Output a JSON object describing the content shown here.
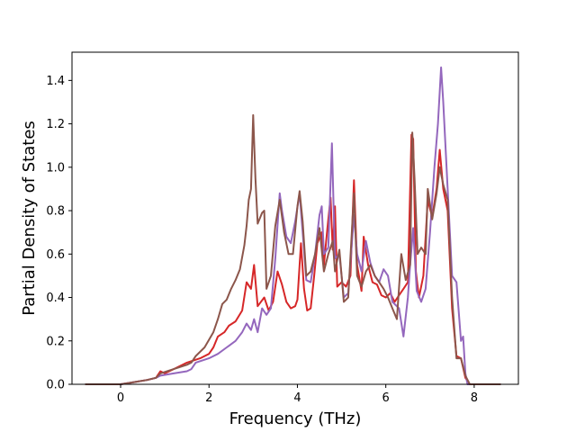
{
  "chart_data": {
    "type": "line",
    "title": "",
    "xlabel": "Frequency (THz)",
    "ylabel": "Partial Density of States",
    "xlim": [
      -1.1,
      9.0
    ],
    "ylim": [
      0.0,
      1.53
    ],
    "xticks": [
      0,
      2,
      4,
      6,
      8
    ],
    "yticks": [
      0.0,
      0.2,
      0.4,
      0.6,
      0.8,
      1.0,
      1.2,
      1.4
    ],
    "xtick_labels": [
      "0",
      "2",
      "4",
      "6",
      "8"
    ],
    "ytick_labels": [
      "0.0",
      "0.2",
      "0.4",
      "0.6",
      "0.8",
      "1.0",
      "1.2",
      "1.4"
    ],
    "grid": false,
    "legend": "none",
    "series": [
      {
        "color": "#d62728",
        "points": [
          [
            -0.8,
            0
          ],
          [
            0,
            0
          ],
          [
            0.3,
            0.01
          ],
          [
            0.6,
            0.02
          ],
          [
            0.8,
            0.03
          ],
          [
            0.9,
            0.06
          ],
          [
            1.0,
            0.05
          ],
          [
            1.2,
            0.07
          ],
          [
            1.5,
            0.1
          ],
          [
            1.8,
            0.12
          ],
          [
            2.0,
            0.14
          ],
          [
            2.1,
            0.17
          ],
          [
            2.2,
            0.22
          ],
          [
            2.35,
            0.24
          ],
          [
            2.45,
            0.27
          ],
          [
            2.6,
            0.29
          ],
          [
            2.75,
            0.34
          ],
          [
            2.85,
            0.47
          ],
          [
            2.95,
            0.44
          ],
          [
            3.02,
            0.55
          ],
          [
            3.1,
            0.36
          ],
          [
            3.25,
            0.4
          ],
          [
            3.35,
            0.34
          ],
          [
            3.45,
            0.38
          ],
          [
            3.55,
            0.52
          ],
          [
            3.65,
            0.46
          ],
          [
            3.75,
            0.38
          ],
          [
            3.85,
            0.35
          ],
          [
            3.95,
            0.36
          ],
          [
            4.0,
            0.39
          ],
          [
            4.08,
            0.65
          ],
          [
            4.15,
            0.44
          ],
          [
            4.22,
            0.34
          ],
          [
            4.3,
            0.35
          ],
          [
            4.38,
            0.5
          ],
          [
            4.45,
            0.65
          ],
          [
            4.55,
            0.7
          ],
          [
            4.6,
            0.55
          ],
          [
            4.68,
            0.72
          ],
          [
            4.75,
            0.86
          ],
          [
            4.8,
            0.62
          ],
          [
            4.85,
            0.82
          ],
          [
            4.9,
            0.45
          ],
          [
            5.0,
            0.47
          ],
          [
            5.1,
            0.45
          ],
          [
            5.2,
            0.5
          ],
          [
            5.28,
            0.94
          ],
          [
            5.35,
            0.55
          ],
          [
            5.45,
            0.43
          ],
          [
            5.5,
            0.68
          ],
          [
            5.6,
            0.55
          ],
          [
            5.7,
            0.47
          ],
          [
            5.8,
            0.46
          ],
          [
            5.9,
            0.41
          ],
          [
            6.0,
            0.4
          ],
          [
            6.1,
            0.42
          ],
          [
            6.2,
            0.38
          ],
          [
            6.3,
            0.41
          ],
          [
            6.4,
            0.44
          ],
          [
            6.5,
            0.47
          ],
          [
            6.58,
            1.15
          ],
          [
            6.62,
            1.13
          ],
          [
            6.68,
            0.52
          ],
          [
            6.75,
            0.4
          ],
          [
            6.85,
            0.5
          ],
          [
            6.95,
            0.85
          ],
          [
            7.05,
            0.77
          ],
          [
            7.15,
            0.9
          ],
          [
            7.22,
            1.08
          ],
          [
            7.3,
            0.9
          ],
          [
            7.4,
            0.8
          ],
          [
            7.5,
            0.35
          ],
          [
            7.6,
            0.13
          ],
          [
            7.7,
            0.12
          ],
          [
            7.8,
            0.03
          ],
          [
            7.9,
            0
          ],
          [
            8.6,
            0
          ]
        ]
      },
      {
        "color": "#9467bd",
        "points": [
          [
            -0.8,
            0
          ],
          [
            0,
            0
          ],
          [
            0.3,
            0.01
          ],
          [
            0.6,
            0.02
          ],
          [
            0.8,
            0.03
          ],
          [
            0.9,
            0.04
          ],
          [
            1.2,
            0.05
          ],
          [
            1.5,
            0.06
          ],
          [
            1.6,
            0.07
          ],
          [
            1.7,
            0.1
          ],
          [
            2.0,
            0.12
          ],
          [
            2.2,
            0.14
          ],
          [
            2.4,
            0.17
          ],
          [
            2.6,
            0.2
          ],
          [
            2.75,
            0.24
          ],
          [
            2.85,
            0.28
          ],
          [
            2.95,
            0.25
          ],
          [
            3.02,
            0.3
          ],
          [
            3.1,
            0.24
          ],
          [
            3.2,
            0.35
          ],
          [
            3.3,
            0.32
          ],
          [
            3.4,
            0.35
          ],
          [
            3.5,
            0.58
          ],
          [
            3.6,
            0.88
          ],
          [
            3.65,
            0.8
          ],
          [
            3.75,
            0.68
          ],
          [
            3.85,
            0.65
          ],
          [
            3.95,
            0.75
          ],
          [
            4.05,
            0.88
          ],
          [
            4.12,
            0.7
          ],
          [
            4.2,
            0.48
          ],
          [
            4.3,
            0.47
          ],
          [
            4.4,
            0.6
          ],
          [
            4.5,
            0.78
          ],
          [
            4.55,
            0.82
          ],
          [
            4.6,
            0.6
          ],
          [
            4.7,
            0.63
          ],
          [
            4.78,
            1.11
          ],
          [
            4.85,
            0.58
          ],
          [
            4.95,
            0.6
          ],
          [
            5.05,
            0.4
          ],
          [
            5.15,
            0.42
          ],
          [
            5.28,
            0.78
          ],
          [
            5.35,
            0.6
          ],
          [
            5.45,
            0.52
          ],
          [
            5.55,
            0.66
          ],
          [
            5.65,
            0.56
          ],
          [
            5.75,
            0.5
          ],
          [
            5.85,
            0.47
          ],
          [
            5.95,
            0.53
          ],
          [
            6.05,
            0.5
          ],
          [
            6.15,
            0.38
          ],
          [
            6.3,
            0.35
          ],
          [
            6.4,
            0.22
          ],
          [
            6.5,
            0.4
          ],
          [
            6.55,
            0.55
          ],
          [
            6.62,
            0.72
          ],
          [
            6.7,
            0.43
          ],
          [
            6.8,
            0.38
          ],
          [
            6.9,
            0.44
          ],
          [
            7.0,
            0.7
          ],
          [
            7.1,
            1.0
          ],
          [
            7.18,
            1.2
          ],
          [
            7.25,
            1.46
          ],
          [
            7.3,
            1.3
          ],
          [
            7.4,
            0.9
          ],
          [
            7.5,
            0.5
          ],
          [
            7.6,
            0.47
          ],
          [
            7.7,
            0.2
          ],
          [
            7.75,
            0.22
          ],
          [
            7.8,
            0.05
          ],
          [
            7.85,
            0
          ],
          [
            8.6,
            0
          ]
        ]
      },
      {
        "color": "#8c564b",
        "points": [
          [
            -0.8,
            0
          ],
          [
            0,
            0
          ],
          [
            0.3,
            0.01
          ],
          [
            0.6,
            0.02
          ],
          [
            0.8,
            0.03
          ],
          [
            0.9,
            0.05
          ],
          [
            1.2,
            0.07
          ],
          [
            1.5,
            0.09
          ],
          [
            1.6,
            0.1
          ],
          [
            1.7,
            0.13
          ],
          [
            1.9,
            0.17
          ],
          [
            2.1,
            0.24
          ],
          [
            2.2,
            0.3
          ],
          [
            2.3,
            0.37
          ],
          [
            2.4,
            0.39
          ],
          [
            2.5,
            0.44
          ],
          [
            2.6,
            0.48
          ],
          [
            2.7,
            0.53
          ],
          [
            2.8,
            0.64
          ],
          [
            2.85,
            0.73
          ],
          [
            2.9,
            0.85
          ],
          [
            2.95,
            0.9
          ],
          [
            3.0,
            1.24
          ],
          [
            3.05,
            0.95
          ],
          [
            3.1,
            0.74
          ],
          [
            3.2,
            0.79
          ],
          [
            3.25,
            0.8
          ],
          [
            3.3,
            0.44
          ],
          [
            3.4,
            0.5
          ],
          [
            3.5,
            0.73
          ],
          [
            3.6,
            0.85
          ],
          [
            3.7,
            0.7
          ],
          [
            3.8,
            0.6
          ],
          [
            3.9,
            0.6
          ],
          [
            4.0,
            0.82
          ],
          [
            4.05,
            0.89
          ],
          [
            4.12,
            0.75
          ],
          [
            4.2,
            0.5
          ],
          [
            4.3,
            0.52
          ],
          [
            4.4,
            0.6
          ],
          [
            4.5,
            0.72
          ],
          [
            4.6,
            0.52
          ],
          [
            4.7,
            0.6
          ],
          [
            4.8,
            0.66
          ],
          [
            4.85,
            0.52
          ],
          [
            4.95,
            0.62
          ],
          [
            5.05,
            0.38
          ],
          [
            5.15,
            0.4
          ],
          [
            5.28,
            0.88
          ],
          [
            5.35,
            0.5
          ],
          [
            5.45,
            0.45
          ],
          [
            5.55,
            0.52
          ],
          [
            5.65,
            0.55
          ],
          [
            5.75,
            0.5
          ],
          [
            5.85,
            0.47
          ],
          [
            5.95,
            0.44
          ],
          [
            6.05,
            0.4
          ],
          [
            6.15,
            0.35
          ],
          [
            6.25,
            0.3
          ],
          [
            6.35,
            0.6
          ],
          [
            6.45,
            0.48
          ],
          [
            6.55,
            0.55
          ],
          [
            6.6,
            1.16
          ],
          [
            6.65,
            0.95
          ],
          [
            6.72,
            0.6
          ],
          [
            6.8,
            0.63
          ],
          [
            6.9,
            0.6
          ],
          [
            6.95,
            0.9
          ],
          [
            7.05,
            0.76
          ],
          [
            7.15,
            0.88
          ],
          [
            7.22,
            1.0
          ],
          [
            7.3,
            0.92
          ],
          [
            7.4,
            0.85
          ],
          [
            7.5,
            0.4
          ],
          [
            7.6,
            0.12
          ],
          [
            7.7,
            0.12
          ],
          [
            7.8,
            0.04
          ],
          [
            7.9,
            0
          ],
          [
            8.6,
            0
          ]
        ]
      }
    ]
  }
}
